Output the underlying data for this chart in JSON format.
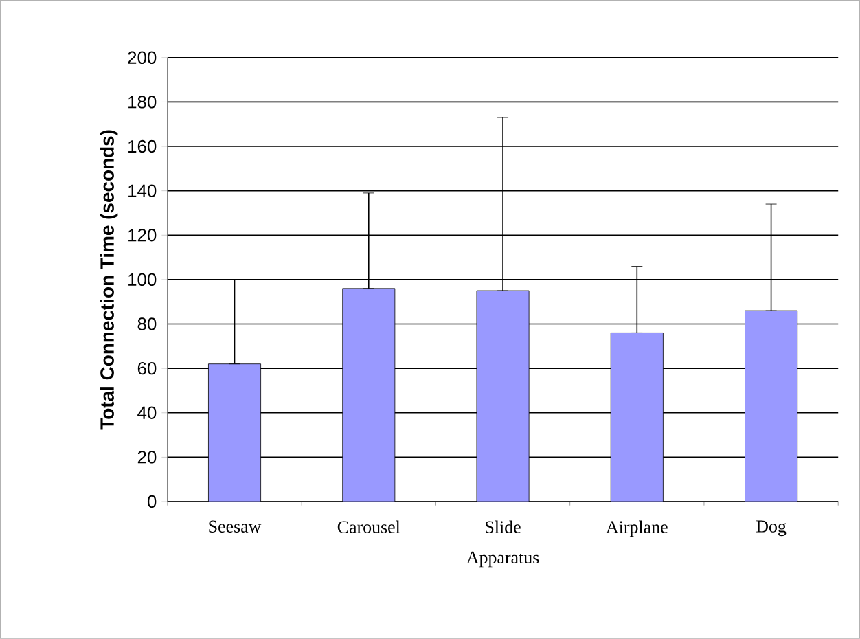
{
  "chart_data": {
    "type": "bar",
    "ylabel": "Total Connection Time (seconds)",
    "xlabel": "Apparatus",
    "categories": [
      "Seesaw",
      "Carousel",
      "Slide",
      "Airplane",
      "Dog"
    ],
    "values": [
      62,
      96,
      95,
      76,
      86
    ],
    "errors": [
      [
        62,
        100
      ],
      [
        96,
        139
      ],
      [
        95,
        173
      ],
      [
        76,
        106
      ],
      [
        86,
        134
      ]
    ],
    "color": "#9999ff",
    "ylim": [
      0,
      200
    ],
    "yticks": [
      0,
      20,
      40,
      60,
      80,
      100,
      120,
      140,
      160,
      180,
      200
    ],
    "grid": "y"
  }
}
